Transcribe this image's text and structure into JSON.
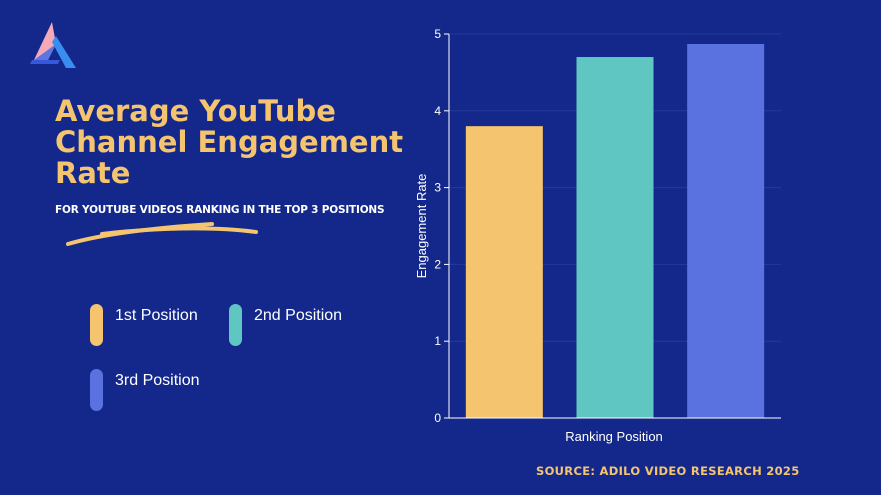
{
  "header": {
    "logo_icon": "adilo-logo-icon",
    "title": "Average YouTube Channel Engagement Rate",
    "subtitle": "FOR YOUTUBE VIDEOS RANKING IN THE TOP 3 POSITIONS"
  },
  "legend": {
    "items": [
      {
        "label": "1st Position",
        "color": "#f5c46e"
      },
      {
        "label": "2nd Position",
        "color": "#5fc6c2"
      },
      {
        "label": "3rd Position",
        "color": "#5a72e0"
      }
    ]
  },
  "footer": {
    "source": "SOURCE: ADILO VIDEO RESEARCH 2025"
  },
  "colors": {
    "background": "#13288a",
    "accent": "#f5c46e",
    "text": "#ffffff"
  },
  "chart_data": {
    "type": "bar",
    "categories": [
      "1st Position",
      "2nd Position",
      "3rd Position"
    ],
    "values": [
      3.8,
      4.7,
      4.87
    ],
    "colors": [
      "#f5c46e",
      "#5fc6c2",
      "#5a72e0"
    ],
    "xlabel": "Ranking Position",
    "ylabel": "Engagement Rate",
    "ylim": [
      0,
      5
    ],
    "yticks": [
      0,
      1,
      2,
      3,
      4,
      5
    ],
    "show_category_tick_labels": false,
    "grid": true
  }
}
